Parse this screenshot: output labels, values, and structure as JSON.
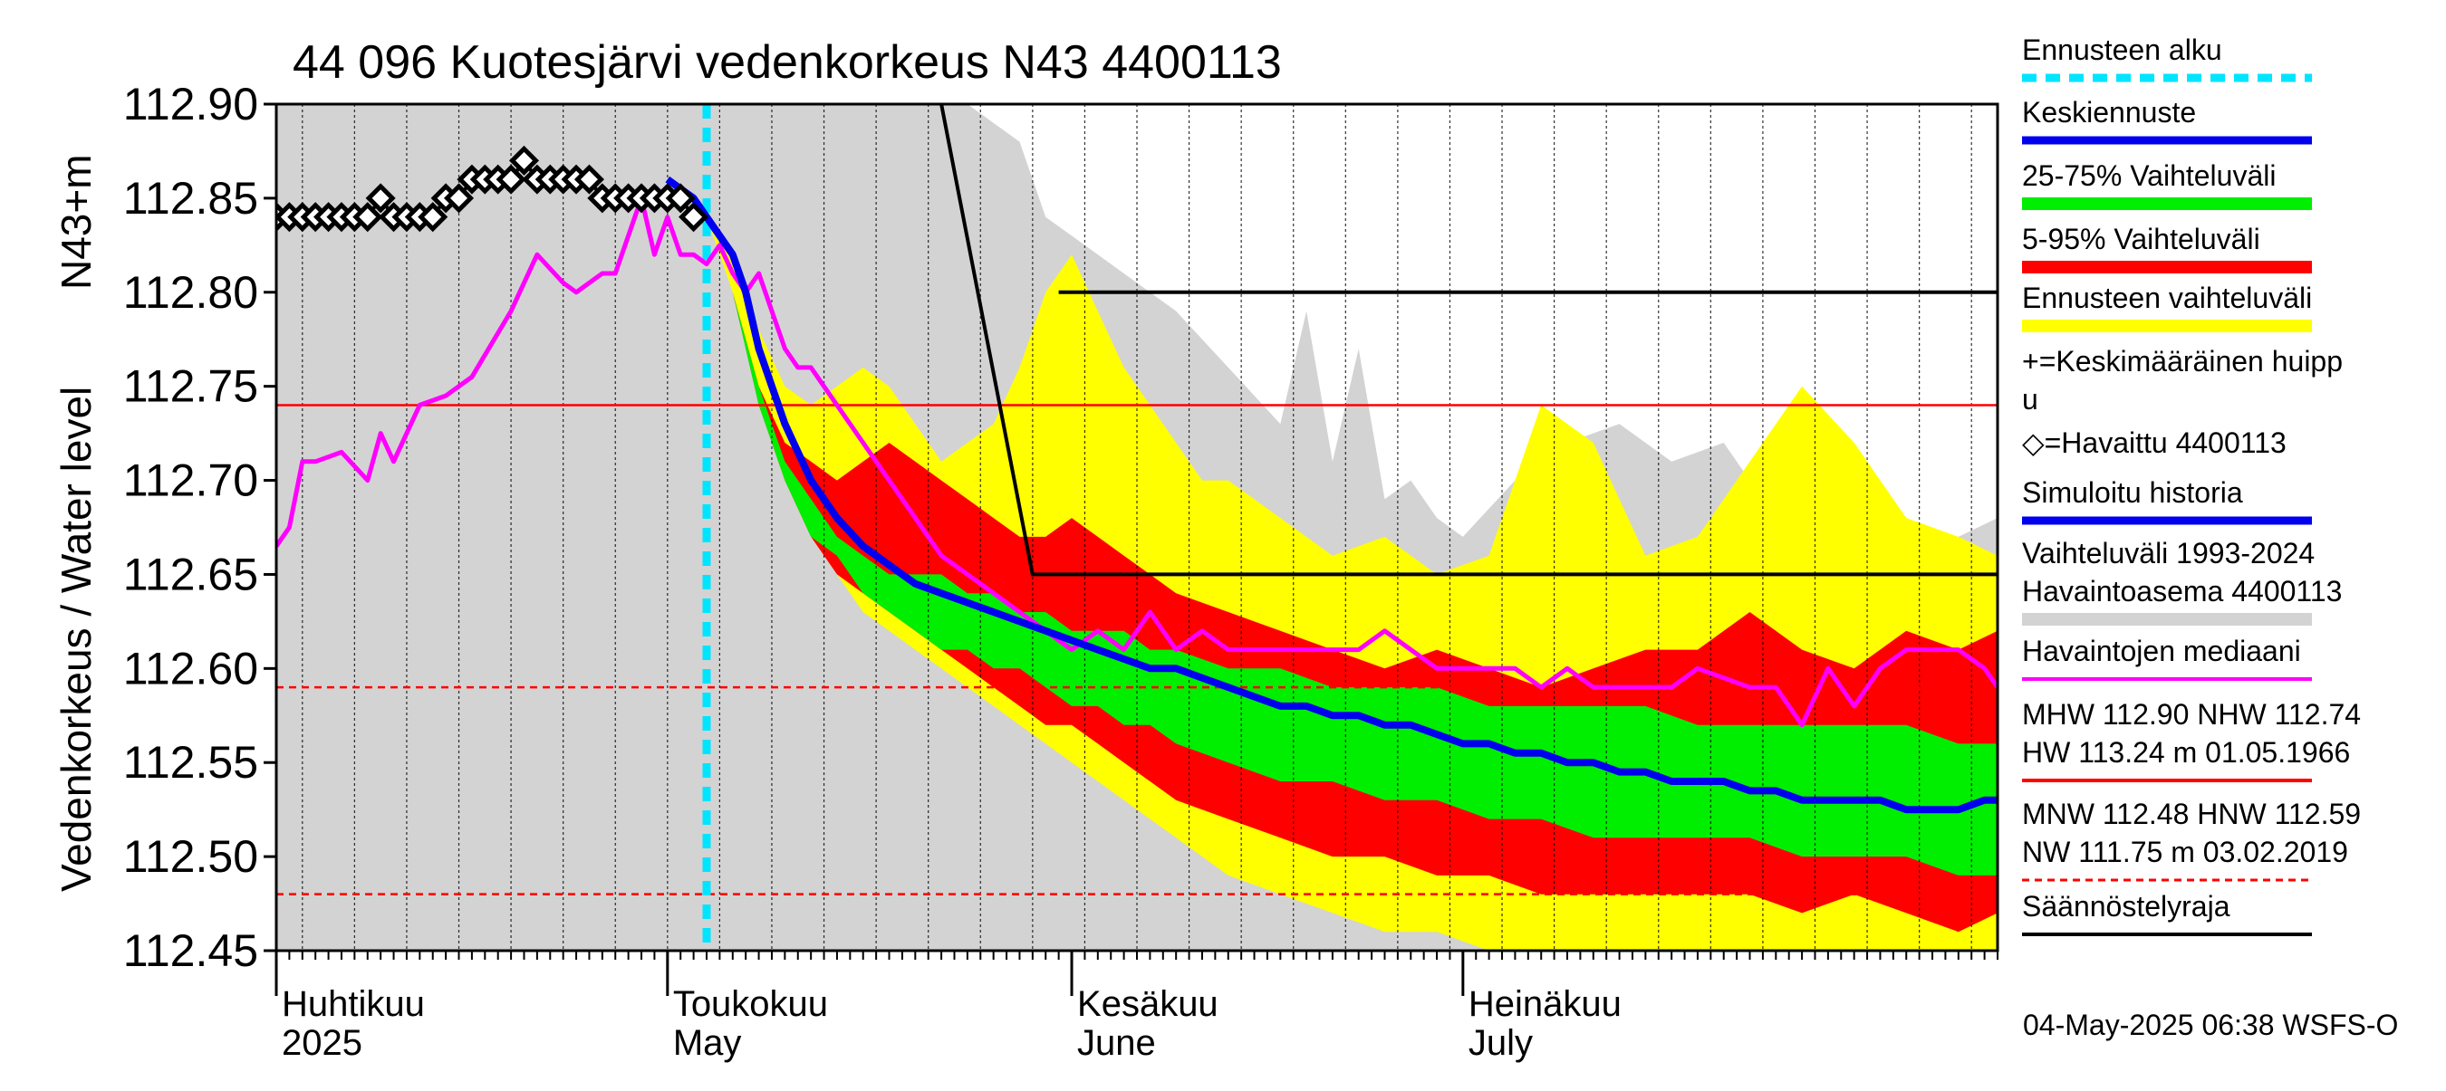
{
  "chart_data": {
    "type": "line",
    "title": "44 096 Kuotesjärvi vedenkorkeus N43 4400113",
    "ylabel_main": "Vedenkorkeus / Water level",
    "ylabel_unit": "N43+m",
    "ylim": [
      112.45,
      112.9
    ],
    "yticks": [
      "112.45",
      "112.50",
      "112.55",
      "112.60",
      "112.65",
      "112.70",
      "112.75",
      "112.80",
      "112.85",
      "112.90"
    ],
    "x_range_days": [
      -33,
      99
    ],
    "x_reference_date": "2025-05-04",
    "months": [
      {
        "name_fi": "Huhtikuu",
        "name_en": "2025",
        "day": -33
      },
      {
        "name_fi": "Toukokuu",
        "name_en": "May",
        "day": -3
      },
      {
        "name_fi": "Kesäkuu",
        "name_en": "June",
        "day": 28
      },
      {
        "name_fi": "Heinäkuu",
        "name_en": "July",
        "day": 58
      }
    ],
    "forecast_start_day": 0,
    "reference_lines": [
      {
        "label": "MHW",
        "value": 112.9,
        "style": "solid",
        "color": "#ff0000"
      },
      {
        "label": "NHW",
        "value": 112.74,
        "style": "solid",
        "color": "#ff0000"
      },
      {
        "label": "HNW",
        "value": 112.59,
        "style": "dashed",
        "color": "#ff0000"
      },
      {
        "label": "MNW",
        "value": 112.48,
        "style": "dashed",
        "color": "#ff0000"
      }
    ],
    "regulation_limit": {
      "name": "Säännöstelyraja",
      "points": [
        [
          18,
          112.9
        ],
        [
          25,
          112.65
        ],
        [
          99,
          112.65
        ]
      ],
      "segment": [
        [
          27,
          112.8
        ],
        [
          99,
          112.8
        ]
      ]
    },
    "series": [
      {
        "name": "Vaihteluväli 1993-2024 Havaintoasema 4400113",
        "type": "band",
        "color": "#d3d3d3",
        "x": [
          -33,
          -30,
          -28,
          -26,
          -24,
          -20,
          -16,
          -12,
          -8,
          -4,
          -2,
          0,
          2,
          4,
          8,
          12,
          16,
          20,
          24,
          26,
          28,
          32,
          36,
          40,
          44,
          46,
          48,
          50,
          52,
          54,
          56,
          58,
          62,
          64,
          66,
          70,
          74,
          78,
          80,
          84,
          88,
          92,
          96,
          99
        ],
        "upper": [
          112.9,
          112.9,
          112.9,
          112.9,
          112.9,
          112.9,
          112.9,
          112.9,
          112.9,
          112.9,
          112.9,
          112.9,
          112.9,
          112.9,
          112.9,
          112.9,
          112.9,
          112.9,
          112.88,
          112.84,
          112.83,
          112.81,
          112.79,
          112.76,
          112.73,
          112.79,
          112.71,
          112.77,
          112.69,
          112.7,
          112.68,
          112.67,
          112.7,
          112.69,
          112.72,
          112.73,
          112.71,
          112.72,
          112.7,
          112.69,
          112.7,
          112.66,
          112.67,
          112.68
        ],
        "lower": [
          112.45,
          112.45,
          112.45,
          112.45,
          112.45,
          112.45,
          112.45,
          112.45,
          112.45,
          112.45,
          112.45,
          112.45,
          112.45,
          112.45,
          112.45,
          112.45,
          112.45,
          112.45,
          112.45,
          112.45,
          112.45,
          112.45,
          112.45,
          112.45,
          112.45,
          112.45,
          112.45,
          112.45,
          112.45,
          112.45,
          112.45,
          112.45,
          112.45,
          112.45,
          112.45,
          112.45,
          112.45,
          112.45,
          112.45,
          112.45,
          112.45,
          112.45,
          112.45,
          112.45
        ]
      },
      {
        "name": "Ennusteen vaihteluväli",
        "type": "band",
        "color": "#ffff00",
        "x": [
          0,
          2,
          4,
          6,
          8,
          10,
          12,
          14,
          16,
          18,
          20,
          22,
          24,
          26,
          28,
          30,
          32,
          34,
          36,
          38,
          40,
          44,
          48,
          52,
          56,
          60,
          64,
          68,
          72,
          76,
          80,
          84,
          88,
          92,
          96,
          99
        ],
        "upper": [
          112.84,
          112.82,
          112.78,
          112.75,
          112.74,
          112.75,
          112.76,
          112.75,
          112.73,
          112.71,
          112.72,
          112.73,
          112.76,
          112.8,
          112.82,
          112.79,
          112.76,
          112.74,
          112.72,
          112.7,
          112.7,
          112.68,
          112.66,
          112.67,
          112.65,
          112.66,
          112.74,
          112.72,
          112.66,
          112.67,
          112.71,
          112.75,
          112.72,
          112.68,
          112.67,
          112.66
        ],
        "lower": [
          112.84,
          112.8,
          112.74,
          112.7,
          112.67,
          112.65,
          112.63,
          112.62,
          112.61,
          112.6,
          112.59,
          112.58,
          112.57,
          112.56,
          112.55,
          112.54,
          112.53,
          112.52,
          112.51,
          112.5,
          112.49,
          112.48,
          112.47,
          112.46,
          112.46,
          112.45,
          112.45,
          112.45,
          112.45,
          112.45,
          112.45,
          112.45,
          112.45,
          112.45,
          112.45,
          112.45
        ]
      },
      {
        "name": "5-95% Vaihteluväli",
        "type": "band",
        "color": "#ff0000",
        "x": [
          0,
          2,
          4,
          6,
          8,
          10,
          12,
          14,
          16,
          18,
          20,
          22,
          24,
          26,
          28,
          30,
          32,
          34,
          36,
          40,
          44,
          48,
          52,
          56,
          60,
          64,
          68,
          72,
          76,
          80,
          84,
          88,
          92,
          96,
          99
        ],
        "upper": [
          112.84,
          112.8,
          112.75,
          112.72,
          112.71,
          112.7,
          112.71,
          112.72,
          112.71,
          112.7,
          112.69,
          112.68,
          112.67,
          112.67,
          112.68,
          112.67,
          112.66,
          112.65,
          112.64,
          112.63,
          112.62,
          112.61,
          112.6,
          112.61,
          112.6,
          112.59,
          112.6,
          112.61,
          112.61,
          112.63,
          112.61,
          112.6,
          112.62,
          112.61,
          112.62
        ],
        "lower": [
          112.84,
          112.8,
          112.74,
          112.7,
          112.67,
          112.65,
          112.64,
          112.63,
          112.62,
          112.61,
          112.6,
          112.59,
          112.58,
          112.57,
          112.57,
          112.56,
          112.55,
          112.54,
          112.53,
          112.52,
          112.51,
          112.5,
          112.5,
          112.49,
          112.49,
          112.48,
          112.48,
          112.48,
          112.48,
          112.48,
          112.47,
          112.48,
          112.47,
          112.46,
          112.47
        ]
      },
      {
        "name": "25-75% Vaihteluväli",
        "type": "band",
        "color": "#00ee00",
        "x": [
          0,
          2,
          4,
          6,
          8,
          10,
          12,
          14,
          16,
          18,
          20,
          22,
          24,
          26,
          28,
          30,
          32,
          34,
          36,
          40,
          44,
          48,
          52,
          56,
          60,
          64,
          68,
          72,
          76,
          80,
          84,
          88,
          92,
          96,
          99
        ],
        "upper": [
          112.84,
          112.8,
          112.75,
          112.71,
          112.69,
          112.67,
          112.66,
          112.65,
          112.65,
          112.65,
          112.64,
          112.64,
          112.63,
          112.63,
          112.62,
          112.62,
          112.62,
          112.61,
          112.61,
          112.6,
          112.6,
          112.59,
          112.59,
          112.59,
          112.58,
          112.58,
          112.58,
          112.58,
          112.57,
          112.57,
          112.57,
          112.57,
          112.57,
          112.56,
          112.56
        ],
        "lower": [
          112.84,
          112.8,
          112.74,
          112.7,
          112.67,
          112.66,
          112.64,
          112.63,
          112.62,
          112.61,
          112.61,
          112.6,
          112.6,
          112.59,
          112.58,
          112.58,
          112.57,
          112.57,
          112.56,
          112.55,
          112.54,
          112.54,
          112.53,
          112.53,
          112.52,
          112.52,
          112.51,
          112.51,
          112.51,
          112.51,
          112.5,
          112.5,
          112.5,
          112.49,
          112.49
        ]
      },
      {
        "name": "Havaintojen mediaani",
        "type": "line",
        "color": "#ff00ff",
        "x": [
          -33,
          -32,
          -31,
          -30,
          -28,
          -26,
          -25,
          -24,
          -22,
          -20,
          -18,
          -15,
          -13,
          -11,
          -10,
          -8,
          -7,
          -6,
          -5,
          -4,
          -3,
          -2,
          -1,
          0,
          1,
          2,
          3,
          4,
          5,
          6,
          7,
          8,
          9,
          10,
          12,
          14,
          16,
          18,
          20,
          22,
          24,
          26,
          28,
          30,
          32,
          34,
          36,
          38,
          40,
          44,
          48,
          50,
          52,
          56,
          60,
          62,
          64,
          66,
          68,
          70,
          72,
          74,
          76,
          80,
          82,
          84,
          86,
          88,
          90,
          92,
          94,
          96,
          98,
          99
        ],
        "values": [
          112.665,
          112.675,
          112.71,
          112.71,
          112.715,
          112.7,
          112.725,
          112.71,
          112.74,
          112.745,
          112.755,
          112.79,
          112.82,
          112.805,
          112.8,
          112.81,
          112.81,
          112.83,
          112.85,
          112.82,
          112.84,
          112.82,
          112.82,
          112.815,
          112.825,
          112.81,
          112.8,
          112.81,
          112.79,
          112.77,
          112.76,
          112.76,
          112.75,
          112.74,
          112.72,
          112.7,
          112.68,
          112.66,
          112.65,
          112.64,
          112.63,
          112.62,
          112.61,
          112.62,
          112.61,
          112.63,
          112.61,
          112.62,
          112.61,
          112.61,
          112.61,
          112.61,
          112.62,
          112.6,
          112.6,
          112.6,
          112.59,
          112.6,
          112.59,
          112.59,
          112.59,
          112.59,
          112.6,
          112.59,
          112.59,
          112.57,
          112.6,
          112.58,
          112.6,
          112.61,
          112.61,
          112.61,
          112.6,
          112.59
        ]
      },
      {
        "name": "Keskiennuste",
        "type": "line",
        "color": "#0000ee",
        "x": [
          -3,
          -1,
          0,
          1,
          2,
          3,
          4,
          5,
          6,
          8,
          10,
          12,
          14,
          16,
          18,
          20,
          22,
          24,
          26,
          28,
          30,
          32,
          34,
          36,
          38,
          40,
          42,
          44,
          46,
          48,
          50,
          52,
          54,
          56,
          58,
          60,
          62,
          64,
          66,
          68,
          70,
          72,
          74,
          76,
          78,
          80,
          82,
          84,
          86,
          88,
          90,
          92,
          94,
          96,
          98,
          99
        ],
        "values": [
          112.86,
          112.85,
          112.84,
          112.83,
          112.82,
          112.8,
          112.77,
          112.75,
          112.73,
          112.7,
          112.68,
          112.665,
          112.655,
          112.645,
          112.64,
          112.635,
          112.63,
          112.625,
          112.62,
          112.615,
          112.61,
          112.605,
          112.6,
          112.6,
          112.595,
          112.59,
          112.585,
          112.58,
          112.58,
          112.575,
          112.575,
          112.57,
          112.57,
          112.565,
          112.56,
          112.56,
          112.555,
          112.555,
          112.55,
          112.55,
          112.545,
          112.545,
          112.54,
          112.54,
          112.54,
          112.535,
          112.535,
          112.53,
          112.53,
          112.53,
          112.53,
          112.525,
          112.525,
          112.525,
          112.53,
          112.53
        ]
      },
      {
        "name": "Havaittu 4400113",
        "type": "scatter",
        "color": "#000000",
        "x": [
          -33,
          -32,
          -31,
          -30,
          -29,
          -28,
          -27,
          -26,
          -25,
          -24,
          -23,
          -22,
          -21,
          -20,
          -19,
          -18,
          -17,
          -16,
          -15,
          -14,
          -13,
          -12,
          -11,
          -10,
          -9,
          -8,
          -7,
          -6,
          -5,
          -4,
          -3,
          -2,
          -1
        ],
        "values": [
          112.84,
          112.84,
          112.84,
          112.84,
          112.84,
          112.84,
          112.84,
          112.84,
          112.85,
          112.84,
          112.84,
          112.84,
          112.84,
          112.85,
          112.85,
          112.86,
          112.86,
          112.86,
          112.86,
          112.87,
          112.86,
          112.86,
          112.86,
          112.86,
          112.86,
          112.85,
          112.85,
          112.85,
          112.85,
          112.85,
          112.85,
          112.85,
          112.84
        ]
      }
    ]
  },
  "legend": {
    "items": [
      {
        "label": "Ennusteen alku",
        "kind": "dashed",
        "color": "#00e5ff"
      },
      {
        "label": "Keskiennuste",
        "kind": "line",
        "color": "#0000ee"
      },
      {
        "label": "25-75% Vaihteluväli",
        "kind": "thick",
        "color": "#00ee00"
      },
      {
        "label": "5-95% Vaihteluväli",
        "kind": "thick",
        "color": "#ff0000"
      },
      {
        "label": "Ennusteen vaihteluväli",
        "kind": "thick",
        "color": "#ffff00"
      },
      {
        "label": "+=Keskimääräinen huipp",
        "label2": "u",
        "kind": "text"
      },
      {
        "label": "◇=Havaittu 4400113",
        "kind": "text"
      },
      {
        "label": "Simuloitu historia",
        "kind": "line",
        "color": "#0000ee"
      },
      {
        "label": "Vaihteluväli 1993-2024",
        "label2": " Havaintoasema 4400113",
        "kind": "thick",
        "color": "#d3d3d3"
      },
      {
        "label": "Havaintojen mediaani",
        "kind": "line",
        "color": "#ff00ff"
      },
      {
        "label": "MHW 112.90 NHW 112.74",
        "label2": "HW 113.24 m 01.05.1966",
        "kind": "line",
        "color": "#ff0000"
      },
      {
        "label": "MNW 112.48 HNW 112.59",
        "label2": "NW 111.75 m 03.02.2019",
        "kind": "dashed",
        "color": "#ff0000"
      },
      {
        "label": "Säännöstelyraja",
        "kind": "line",
        "color": "#000000"
      }
    ]
  },
  "footer": {
    "timestamp": "04-May-2025 06:38 WSFS-O"
  },
  "colors": {
    "background": "#ffffff",
    "axis": "#000000",
    "gridline": "#000000"
  }
}
